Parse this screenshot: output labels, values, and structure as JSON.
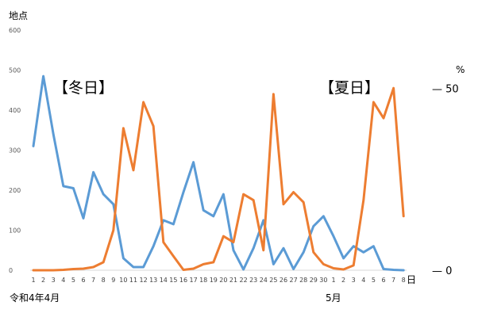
{
  "chart_data": {
    "type": "line",
    "left_axis": {
      "unit_label": "地点",
      "ylim": [
        0,
        600
      ],
      "ticks": [
        0,
        100,
        200,
        300,
        400,
        500,
        600
      ]
    },
    "right_axis": {
      "unit_label": "%",
      "ylim": [
        0,
        100
      ],
      "tick_labels": [
        "— 50",
        "— 0"
      ],
      "tick_values": [
        50,
        0
      ]
    },
    "x": [
      "1",
      "2",
      "3",
      "4",
      "5",
      "6",
      "7",
      "8",
      "9",
      "10",
      "11",
      "12",
      "13",
      "14",
      "15",
      "16",
      "17",
      "18",
      "19",
      "20",
      "21",
      "22",
      "23",
      "24",
      "25",
      "26",
      "27",
      "28",
      "29",
      "30",
      "1",
      "2",
      "3",
      "4",
      "5",
      "6",
      "7",
      "8"
    ],
    "x_end_label": "日",
    "month_labels": [
      {
        "text": "令和4年4月",
        "at_index": 0
      },
      {
        "text": "5月",
        "at_index": 30
      }
    ],
    "annotations": [
      {
        "text": "【冬日】",
        "series": "blue"
      },
      {
        "text": "【夏日】",
        "series": "orange"
      }
    ],
    "series": [
      {
        "axis": "left",
        "color": "#5b9bd5",
        "values": [
          310,
          485,
          340,
          210,
          205,
          130,
          245,
          190,
          165,
          30,
          8,
          8,
          60,
          125,
          115,
          195,
          270,
          150,
          135,
          190,
          50,
          2,
          55,
          125,
          15,
          55,
          3,
          45,
          110,
          135,
          85,
          30,
          60,
          45,
          60,
          3,
          1,
          0
        ]
      },
      {
        "axis": "left",
        "color": "#ed7d31",
        "values": [
          0,
          0,
          0,
          1,
          3,
          4,
          8,
          20,
          100,
          355,
          250,
          420,
          360,
          70,
          35,
          1,
          4,
          15,
          20,
          85,
          70,
          190,
          175,
          50,
          440,
          165,
          195,
          170,
          45,
          15,
          5,
          2,
          12,
          175,
          420,
          380,
          455,
          135
        ]
      }
    ],
    "grid": false
  }
}
